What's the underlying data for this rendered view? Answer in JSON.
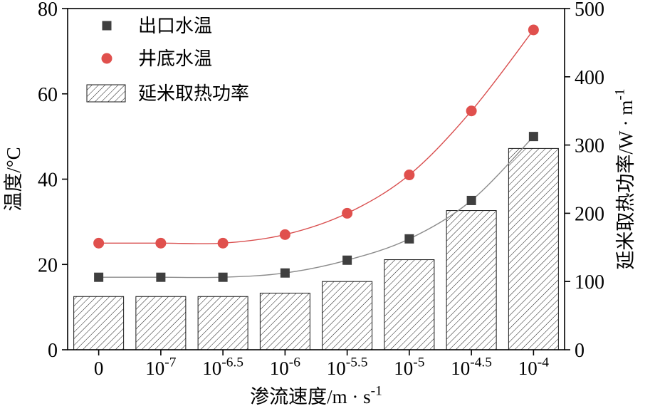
{
  "chart_data": {
    "type": "combo",
    "title": "",
    "categories": [
      "0",
      "10^-7",
      "10^-6.5",
      "10^-6",
      "10^-5.5",
      "10^-5",
      "10^-4.5",
      "10^-4"
    ],
    "series": [
      {
        "name": "出口水温",
        "type": "line",
        "axis": "left",
        "marker": "square",
        "marker_color": "#3f3f3f",
        "line_color": "#8b8b8b",
        "values": [
          17,
          17,
          17,
          18,
          21,
          26,
          35,
          50
        ]
      },
      {
        "name": "井底水温",
        "type": "line",
        "axis": "left",
        "marker": "circle",
        "marker_color": "#e0504d",
        "line_color": "#d94f4f",
        "values": [
          25,
          25,
          25,
          27,
          32,
          41,
          56,
          75
        ]
      },
      {
        "name": "延米取热功率",
        "type": "bar",
        "axis": "right",
        "fill": "hatch",
        "hatch_color": "#1a1a1a",
        "values": [
          78,
          78,
          78,
          83,
          100,
          132,
          204,
          295
        ]
      }
    ],
    "left_axis": {
      "label": "温度/°C",
      "min": 0,
      "max": 80,
      "ticks": [
        0,
        20,
        40,
        60,
        80
      ]
    },
    "right_axis": {
      "label": "延米取热功率/W · m^-1",
      "min": 0,
      "max": 500,
      "ticks": [
        0,
        100,
        200,
        300,
        400,
        500
      ]
    },
    "x_axis": {
      "label": "渗流速度/m · s^-1"
    },
    "legend_position": "top-left",
    "grid": false,
    "frame_color": "#000000",
    "background": "#ffffff"
  }
}
